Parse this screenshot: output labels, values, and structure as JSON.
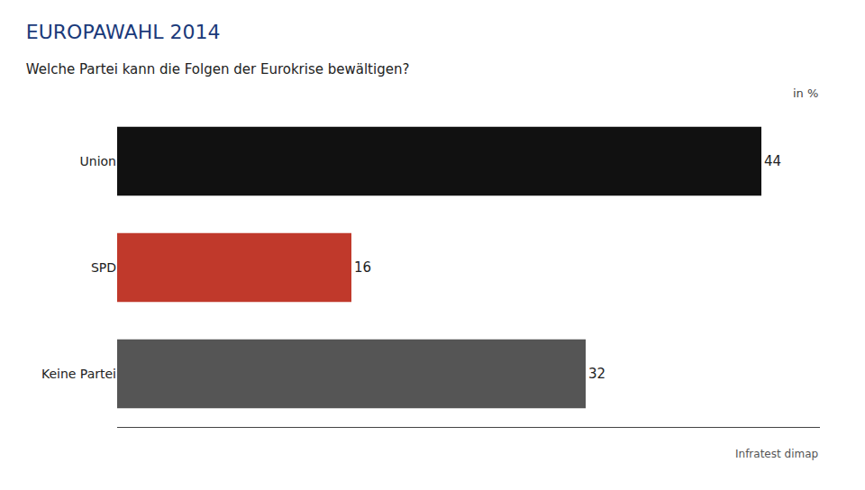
{
  "chart_data": {
    "type": "bar",
    "orientation": "horizontal",
    "title": "EUROPAWAHL 2014",
    "subtitle": "Welche Partei kann die Folgen der Eurokrise bewältigen?",
    "annotations": [
      "in %",
      "Infratest dimap"
    ],
    "categories": [
      "Union",
      "SPD",
      "Keine Partei"
    ],
    "values": [
      44,
      16,
      32
    ],
    "colors": [
      "#111111",
      "#c0392b",
      "#555555"
    ],
    "xlim": [
      0,
      48
    ],
    "data_labels": true,
    "tick_labels": "y",
    "grid": false
  }
}
